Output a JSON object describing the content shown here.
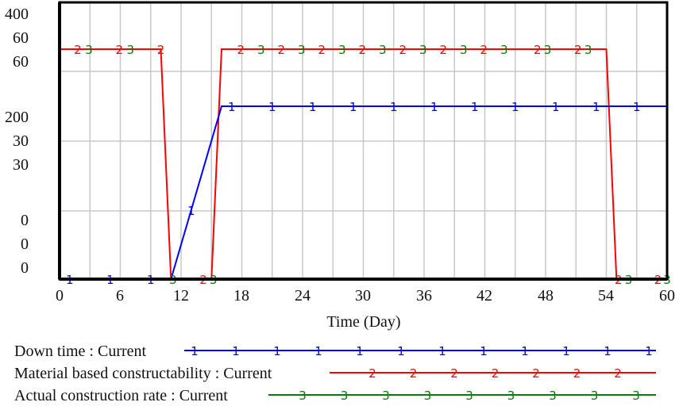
{
  "chart_data": {
    "type": "line",
    "title": "",
    "xlabel": "Time (Day)",
    "ylabel": "",
    "xlim": [
      0,
      60
    ],
    "x_ticks": [
      0,
      6,
      12,
      18,
      24,
      30,
      36,
      42,
      48,
      54,
      60
    ],
    "x_tick_labels": [
      "0",
      "6",
      "12",
      "18",
      "24",
      "30",
      "36",
      "42",
      "48",
      "54",
      "60"
    ],
    "y_tick_label_stacks": [
      {
        "position": "top",
        "labels": [
          "400",
          "60",
          "60"
        ]
      },
      {
        "position": "upper-middle",
        "labels": [
          "200",
          "30",
          "30"
        ]
      },
      {
        "position": "bottom",
        "labels": [
          "0",
          "0",
          "0"
        ]
      }
    ],
    "grid": true,
    "legend_position": "bottom",
    "series": [
      {
        "id": 1,
        "name": "Down time : Current",
        "color": "#0000ff",
        "marker": "1",
        "axis_max": 400,
        "points": [
          [
            0,
            0
          ],
          [
            11,
            0
          ],
          [
            16,
            200
          ],
          [
            60,
            200
          ]
        ]
      },
      {
        "id": 2,
        "name": "Material based constructability : Current",
        "color": "#ff0000",
        "marker": "2",
        "axis_max": 60,
        "points": [
          [
            0,
            60
          ],
          [
            10,
            60
          ],
          [
            11,
            0
          ],
          [
            15,
            0
          ],
          [
            16,
            60
          ],
          [
            54,
            60
          ],
          [
            55,
            0
          ],
          [
            60,
            0
          ]
        ]
      },
      {
        "id": 3,
        "name": "Actual construction rate : Current",
        "color": "#008000",
        "marker": "3",
        "axis_max": 60,
        "points": [
          [
            0,
            60
          ],
          [
            10,
            60
          ],
          [
            11,
            0
          ],
          [
            15,
            0
          ],
          [
            16,
            60
          ],
          [
            54,
            60
          ],
          [
            55,
            0
          ],
          [
            60,
            0
          ]
        ]
      }
    ]
  },
  "axis": {
    "x_title": "Time (Day)",
    "x_labels": [
      "0",
      "6",
      "12",
      "18",
      "24",
      "30",
      "36",
      "42",
      "48",
      "54",
      "60"
    ],
    "y_labels_top": [
      "400",
      "60",
      "60"
    ],
    "y_labels_mid": [
      "200",
      "30",
      "30"
    ],
    "y_labels_bot": [
      "0",
      "0",
      "0"
    ]
  },
  "legend": {
    "items": [
      {
        "label": "Down time : Current",
        "color": "#0000ff",
        "marker": "1"
      },
      {
        "label": "Material based constructability : Current",
        "color": "#ff0000",
        "marker": "2"
      },
      {
        "label": "Actual construction rate : Current",
        "color": "#008000",
        "marker": "3"
      }
    ]
  }
}
